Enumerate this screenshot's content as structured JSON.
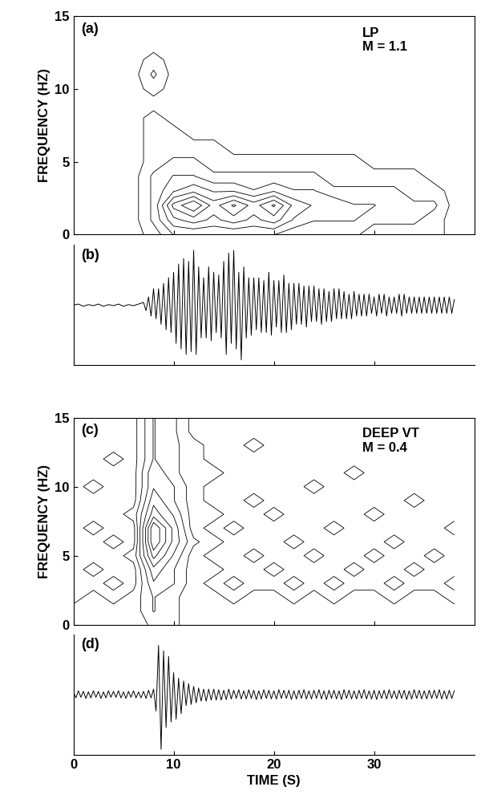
{
  "chart_data": [
    {
      "type": "contour",
      "panel_label": "(a)",
      "annotation": [
        "LP",
        "M = 1.1"
      ],
      "y_label": "FREQUENCY (HZ)",
      "color": "#000000",
      "xlim": [
        0,
        40
      ],
      "xticks": [
        0,
        10,
        20,
        30
      ],
      "ylim": [
        0,
        15
      ],
      "yticks": [
        0,
        5,
        10,
        15
      ],
      "tick_labels": "y",
      "x": [
        0,
        2,
        4,
        6,
        8,
        10,
        12,
        14,
        16,
        18,
        20,
        22,
        24,
        26,
        28,
        30,
        32,
        34,
        36,
        38
      ],
      "y": [
        0,
        1,
        2,
        3,
        4,
        5,
        6,
        7,
        8,
        9,
        10,
        11,
        12,
        13,
        14,
        15
      ],
      "cells": [
        [
          0,
          0,
          0,
          0,
          1,
          3,
          3,
          3,
          3,
          3,
          3,
          2,
          2,
          2,
          2,
          1,
          1,
          1,
          1,
          0
        ],
        [
          0,
          0,
          0,
          0,
          2,
          5,
          6,
          5,
          6,
          5,
          6,
          4,
          3,
          3,
          3,
          2,
          2,
          2,
          1,
          0
        ],
        [
          0,
          0,
          0,
          0,
          2,
          7,
          9,
          6,
          8,
          6,
          8,
          5,
          4,
          4,
          3,
          3,
          2,
          2,
          2,
          0
        ],
        [
          0,
          0,
          0,
          0,
          2,
          4,
          5,
          4,
          4,
          3,
          4,
          3,
          3,
          2,
          2,
          2,
          2,
          1,
          1,
          0
        ],
        [
          0,
          0,
          0,
          0,
          2,
          3,
          3,
          2,
          2,
          2,
          2,
          2,
          2,
          1,
          1,
          1,
          1,
          1,
          0,
          0
        ],
        [
          0,
          0,
          0,
          0,
          1,
          2,
          2,
          1,
          1,
          1,
          1,
          1,
          1,
          1,
          1,
          0,
          0,
          0,
          0,
          0
        ],
        [
          0,
          0,
          0,
          0,
          1,
          1,
          1,
          1,
          0,
          0,
          0,
          0,
          0,
          0,
          0,
          0,
          0,
          0,
          0,
          0
        ],
        [
          0,
          0,
          0,
          0,
          1,
          1,
          0,
          0,
          0,
          0,
          0,
          0,
          0,
          0,
          0,
          0,
          0,
          0,
          0,
          0
        ],
        [
          0,
          0,
          0,
          0,
          1,
          0,
          0,
          0,
          0,
          0,
          0,
          0,
          0,
          0,
          0,
          0,
          0,
          0,
          0,
          0
        ],
        [
          0,
          0,
          0,
          0,
          0,
          0,
          0,
          0,
          0,
          0,
          0,
          0,
          0,
          0,
          0,
          0,
          0,
          0,
          0,
          0
        ],
        [
          0,
          0,
          0,
          0,
          1,
          0,
          0,
          0,
          0,
          0,
          0,
          0,
          0,
          0,
          0,
          0,
          0,
          0,
          0,
          0
        ],
        [
          0,
          0,
          0,
          0,
          2,
          0,
          0,
          0,
          0,
          0,
          0,
          0,
          0,
          0,
          0,
          0,
          0,
          0,
          0,
          0
        ],
        [
          0,
          0,
          0,
          0,
          1,
          0,
          0,
          0,
          0,
          0,
          0,
          0,
          0,
          0,
          0,
          0,
          0,
          0,
          0,
          0
        ],
        [
          0,
          0,
          0,
          0,
          0,
          0,
          0,
          0,
          0,
          0,
          0,
          0,
          0,
          0,
          0,
          0,
          0,
          0,
          0,
          0
        ],
        [
          0,
          0,
          0,
          0,
          0,
          0,
          0,
          0,
          0,
          0,
          0,
          0,
          0,
          0,
          0,
          0,
          0,
          0,
          0,
          0
        ],
        [
          0,
          0,
          0,
          0,
          0,
          0,
          0,
          0,
          0,
          0,
          0,
          0,
          0,
          0,
          0,
          0,
          0,
          0,
          0,
          0
        ]
      ]
    },
    {
      "type": "line",
      "panel_label": "(b)",
      "color": "#000000",
      "xlim": [
        0,
        40
      ],
      "xticks": [
        0,
        10,
        20,
        30
      ],
      "ylim": [
        -1.1,
        1.1
      ],
      "yticks": [],
      "tick_labels": false,
      "x": [
        0,
        0.5,
        1,
        1.5,
        2,
        2.5,
        3,
        3.5,
        4,
        4.5,
        5,
        5.5,
        6,
        6.5,
        7,
        7.25,
        7.5,
        7.75,
        8,
        8.25,
        8.5,
        8.75,
        9,
        9.25,
        9.5,
        9.75,
        10,
        10.25,
        10.5,
        10.75,
        11,
        11.25,
        11.5,
        11.75,
        12,
        12.25,
        12.5,
        12.75,
        13,
        13.25,
        13.5,
        13.75,
        14,
        14.25,
        14.5,
        14.75,
        15,
        15.25,
        15.5,
        15.75,
        16,
        16.25,
        16.5,
        16.75,
        17,
        17.25,
        17.5,
        17.75,
        18,
        18.25,
        18.5,
        18.75,
        19,
        19.25,
        19.5,
        19.75,
        20,
        20.25,
        20.5,
        20.75,
        21,
        21.25,
        21.5,
        21.75,
        22,
        22.25,
        22.5,
        22.75,
        23,
        23.25,
        23.5,
        23.75,
        24,
        24.25,
        24.5,
        24.75,
        25,
        25.25,
        25.5,
        25.75,
        26,
        26.25,
        26.5,
        26.75,
        27,
        27.25,
        27.5,
        27.75,
        28,
        28.25,
        28.5,
        28.75,
        29,
        29.25,
        29.5,
        29.75,
        30,
        30.25,
        30.5,
        30.75,
        31,
        31.25,
        31.5,
        31.75,
        32,
        32.25,
        32.5,
        32.75,
        33,
        33.25,
        33.5,
        33.75,
        34,
        34.25,
        34.5,
        34.75,
        35,
        35.25,
        35.5,
        35.75,
        36,
        36.25,
        36.5,
        36.75,
        37,
        37.25,
        37.5,
        37.75,
        38
      ],
      "values": [
        0,
        0.02,
        -0.02,
        0.01,
        -0.01,
        0.02,
        -0.02,
        0.01,
        -0.01,
        0.02,
        -0.02,
        0.01,
        -0.01,
        0.02,
        0.05,
        -0.1,
        0.15,
        -0.2,
        0.3,
        -0.25,
        0.3,
        -0.35,
        0.4,
        -0.45,
        0.5,
        -0.5,
        0.6,
        -0.7,
        0.75,
        -0.8,
        0.85,
        -0.9,
        0.8,
        -0.85,
        1.0,
        -0.9,
        0.7,
        -0.6,
        0.5,
        -0.6,
        0.7,
        -0.65,
        0.6,
        -0.5,
        0.55,
        -0.6,
        0.8,
        -0.9,
        0.95,
        -0.7,
        1.0,
        -0.8,
        0.6,
        -1.0,
        0.7,
        -0.6,
        0.5,
        -0.55,
        0.5,
        -0.45,
        0.5,
        -0.5,
        0.45,
        -0.5,
        0.6,
        -0.55,
        0.45,
        -0.4,
        0.45,
        -0.5,
        0.55,
        -0.5,
        0.4,
        -0.45,
        0.4,
        -0.35,
        0.4,
        -0.35,
        0.35,
        -0.4,
        0.35,
        -0.3,
        0.35,
        -0.3,
        0.3,
        -0.35,
        0.3,
        -0.3,
        0.25,
        -0.3,
        0.3,
        -0.25,
        0.3,
        -0.25,
        0.25,
        -0.25,
        0.2,
        -0.25,
        0.25,
        -0.2,
        0.2,
        -0.2,
        0.2,
        -0.2,
        0.2,
        -0.15,
        0.15,
        -0.2,
        0.2,
        -0.15,
        0.2,
        -0.2,
        0.15,
        -0.15,
        0.15,
        -0.15,
        0.2,
        -0.2,
        0.2,
        -0.15,
        0.15,
        -0.15,
        0.15,
        -0.15,
        0.15,
        -0.15,
        0.15,
        -0.15,
        0.15,
        -0.15,
        0.15,
        -0.15,
        0.15,
        -0.15,
        0.15,
        -0.15,
        0.15,
        -0.15,
        0.1
      ]
    },
    {
      "type": "contour",
      "panel_label": "(c)",
      "annotation": [
        "DEEP VT",
        "M = 0.4"
      ],
      "y_label": "FREQUENCY (HZ)",
      "color": "#000000",
      "xlim": [
        0,
        40
      ],
      "xticks": [
        0,
        10,
        20,
        30
      ],
      "ylim": [
        0,
        15
      ],
      "yticks": [
        0,
        5,
        10,
        15
      ],
      "tick_labels": "y",
      "x": [
        0,
        2,
        4,
        6,
        8,
        10,
        12,
        14,
        16,
        18,
        20,
        22,
        24,
        26,
        28,
        30,
        32,
        34,
        36,
        38
      ],
      "y": [
        0,
        1,
        2,
        3,
        4,
        5,
        6,
        7,
        8,
        9,
        10,
        11,
        12,
        13,
        14,
        15
      ],
      "cells": [
        [
          1,
          1,
          1,
          1,
          2,
          2,
          1,
          1,
          1,
          1,
          1,
          1,
          1,
          1,
          1,
          1,
          1,
          1,
          1,
          1
        ],
        [
          1,
          1,
          1,
          1,
          3,
          2,
          1,
          1,
          1,
          1,
          1,
          1,
          1,
          1,
          1,
          1,
          1,
          1,
          1,
          1
        ],
        [
          0,
          1,
          0,
          1,
          3,
          2,
          1,
          1,
          0,
          1,
          1,
          0,
          1,
          0,
          1,
          1,
          0,
          1,
          1,
          0
        ],
        [
          0,
          0,
          1,
          0,
          4,
          3,
          1,
          0,
          1,
          0,
          0,
          1,
          0,
          1,
          0,
          0,
          1,
          0,
          0,
          1
        ],
        [
          0,
          1,
          0,
          0,
          5,
          3,
          1,
          1,
          0,
          0,
          1,
          0,
          0,
          0,
          1,
          0,
          0,
          1,
          0,
          0
        ],
        [
          0,
          0,
          0,
          1,
          7,
          4,
          1,
          0,
          0,
          1,
          0,
          0,
          1,
          0,
          0,
          1,
          0,
          0,
          1,
          0
        ],
        [
          0,
          0,
          1,
          0,
          9,
          5,
          2,
          1,
          0,
          0,
          0,
          1,
          0,
          0,
          0,
          0,
          1,
          0,
          0,
          0
        ],
        [
          0,
          1,
          0,
          0,
          9,
          5,
          1,
          0,
          1,
          0,
          0,
          0,
          0,
          1,
          0,
          0,
          0,
          0,
          0,
          1
        ],
        [
          0,
          0,
          0,
          1,
          6,
          4,
          1,
          1,
          0,
          0,
          1,
          0,
          0,
          0,
          0,
          1,
          0,
          0,
          0,
          0
        ],
        [
          0,
          0,
          0,
          0,
          5,
          3,
          1,
          0,
          0,
          1,
          0,
          0,
          0,
          0,
          0,
          0,
          0,
          1,
          0,
          0
        ],
        [
          0,
          1,
          0,
          0,
          4,
          3,
          1,
          0,
          0,
          0,
          0,
          0,
          1,
          0,
          0,
          0,
          0,
          0,
          0,
          0
        ],
        [
          0,
          0,
          0,
          0,
          4,
          2,
          1,
          1,
          0,
          0,
          0,
          0,
          0,
          0,
          1,
          0,
          0,
          0,
          0,
          0
        ],
        [
          0,
          0,
          1,
          0,
          3,
          2,
          1,
          0,
          0,
          0,
          0,
          0,
          0,
          0,
          0,
          0,
          0,
          0,
          0,
          0
        ],
        [
          0,
          0,
          0,
          0,
          3,
          2,
          1,
          0,
          0,
          1,
          0,
          0,
          0,
          0,
          0,
          0,
          0,
          0,
          0,
          0
        ],
        [
          0,
          0,
          0,
          0,
          3,
          2,
          0,
          0,
          0,
          0,
          0,
          0,
          0,
          0,
          0,
          0,
          0,
          0,
          0,
          0
        ],
        [
          0,
          0,
          0,
          0,
          3,
          2,
          0,
          0,
          0,
          0,
          0,
          0,
          0,
          0,
          0,
          0,
          0,
          0,
          0,
          0
        ]
      ]
    },
    {
      "type": "line",
      "panel_label": "(d)",
      "x_label": "TIME (S)",
      "color": "#000000",
      "xlim": [
        0,
        40
      ],
      "xticks": [
        0,
        10,
        20,
        30
      ],
      "ylim": [
        -1.1,
        1.1
      ],
      "yticks": [],
      "tick_labels": "x",
      "x": [
        0,
        0.25,
        0.5,
        0.75,
        1,
        1.25,
        1.5,
        1.75,
        2,
        2.25,
        2.5,
        2.75,
        3,
        3.25,
        3.5,
        3.75,
        4,
        4.25,
        4.5,
        4.75,
        5,
        5.25,
        5.5,
        5.75,
        6,
        6.25,
        6.5,
        6.75,
        7,
        7.25,
        7.5,
        7.75,
        8,
        8.25,
        8.5,
        8.75,
        9,
        9.25,
        9.5,
        9.75,
        10,
        10.25,
        10.5,
        10.75,
        11,
        11.25,
        11.5,
        11.75,
        12,
        12.25,
        12.5,
        12.75,
        13,
        13.25,
        13.5,
        13.75,
        14,
        14.25,
        14.5,
        14.75,
        15,
        15.25,
        15.5,
        15.75,
        16,
        16.25,
        16.5,
        16.75,
        17,
        17.25,
        17.5,
        17.75,
        18,
        18.25,
        18.5,
        18.75,
        19,
        19.25,
        19.5,
        19.75,
        20,
        20.25,
        20.5,
        20.75,
        21,
        21.25,
        21.5,
        21.75,
        22,
        22.25,
        22.5,
        22.75,
        23,
        23.25,
        23.5,
        23.75,
        24,
        24.25,
        24.5,
        24.75,
        25,
        25.25,
        25.5,
        25.75,
        26,
        26.25,
        26.5,
        26.75,
        27,
        27.25,
        27.5,
        27.75,
        28,
        28.25,
        28.5,
        28.75,
        29,
        29.25,
        29.5,
        29.75,
        30,
        30.25,
        30.5,
        30.75,
        31,
        31.25,
        31.5,
        31.75,
        32,
        32.25,
        32.5,
        32.75,
        33,
        33.25,
        33.5,
        33.75,
        34,
        34.25,
        34.5,
        34.75,
        35,
        35.25,
        35.5,
        35.75,
        36,
        36.25,
        36.5,
        36.75,
        37,
        37.25,
        37.5,
        37.75,
        38
      ],
      "values": [
        0.05,
        -0.06,
        0.07,
        -0.05,
        0.06,
        -0.07,
        0.05,
        -0.06,
        0.07,
        -0.05,
        0.06,
        -0.07,
        0.05,
        -0.06,
        0.07,
        -0.05,
        0.06,
        -0.05,
        0.07,
        -0.06,
        0.05,
        -0.07,
        0.06,
        -0.05,
        0.07,
        -0.06,
        0.05,
        -0.06,
        0.06,
        -0.07,
        0.08,
        -0.06,
        0.1,
        -0.3,
        0.9,
        -1.0,
        0.8,
        -0.6,
        0.7,
        -0.5,
        0.4,
        -0.45,
        0.3,
        -0.35,
        0.25,
        -0.2,
        0.2,
        -0.18,
        0.15,
        -0.15,
        0.12,
        -0.12,
        0.1,
        -0.12,
        0.1,
        -0.1,
        0.1,
        -0.1,
        0.09,
        -0.1,
        0.08,
        -0.09,
        0.1,
        -0.08,
        0.08,
        -0.07,
        0.09,
        -0.08,
        0.07,
        -0.08,
        0.09,
        -0.07,
        0.08,
        -0.09,
        0.07,
        -0.08,
        0.09,
        -0.07,
        0.08,
        -0.08,
        0.07,
        -0.08,
        0.09,
        -0.07,
        0.08,
        -0.07,
        0.08,
        -0.09,
        0.07,
        -0.08,
        0.08,
        -0.07,
        0.09,
        -0.08,
        0.07,
        -0.08,
        0.08,
        -0.07,
        0.09,
        -0.08,
        0.07,
        -0.09,
        0.08,
        -0.07,
        0.08,
        -0.08,
        0.07,
        -0.09,
        0.09,
        -0.07,
        0.08,
        -0.08,
        0.07,
        -0.08,
        0.08,
        -0.07,
        0.09,
        -0.08,
        0.07,
        -0.08,
        0.08,
        -0.09,
        0.07,
        -0.07,
        0.08,
        -0.08,
        0.09,
        -0.07,
        0.07,
        -0.08,
        0.08,
        -0.07,
        0.08,
        -0.09,
        0.07,
        -0.08,
        0.09,
        -0.07,
        0.08,
        -0.08,
        0.07,
        -0.08,
        0.08,
        -0.07,
        0.08,
        -0.07,
        0.09,
        -0.08,
        0.07,
        -0.08,
        0.08,
        -0.07,
        0.07
      ]
    }
  ]
}
